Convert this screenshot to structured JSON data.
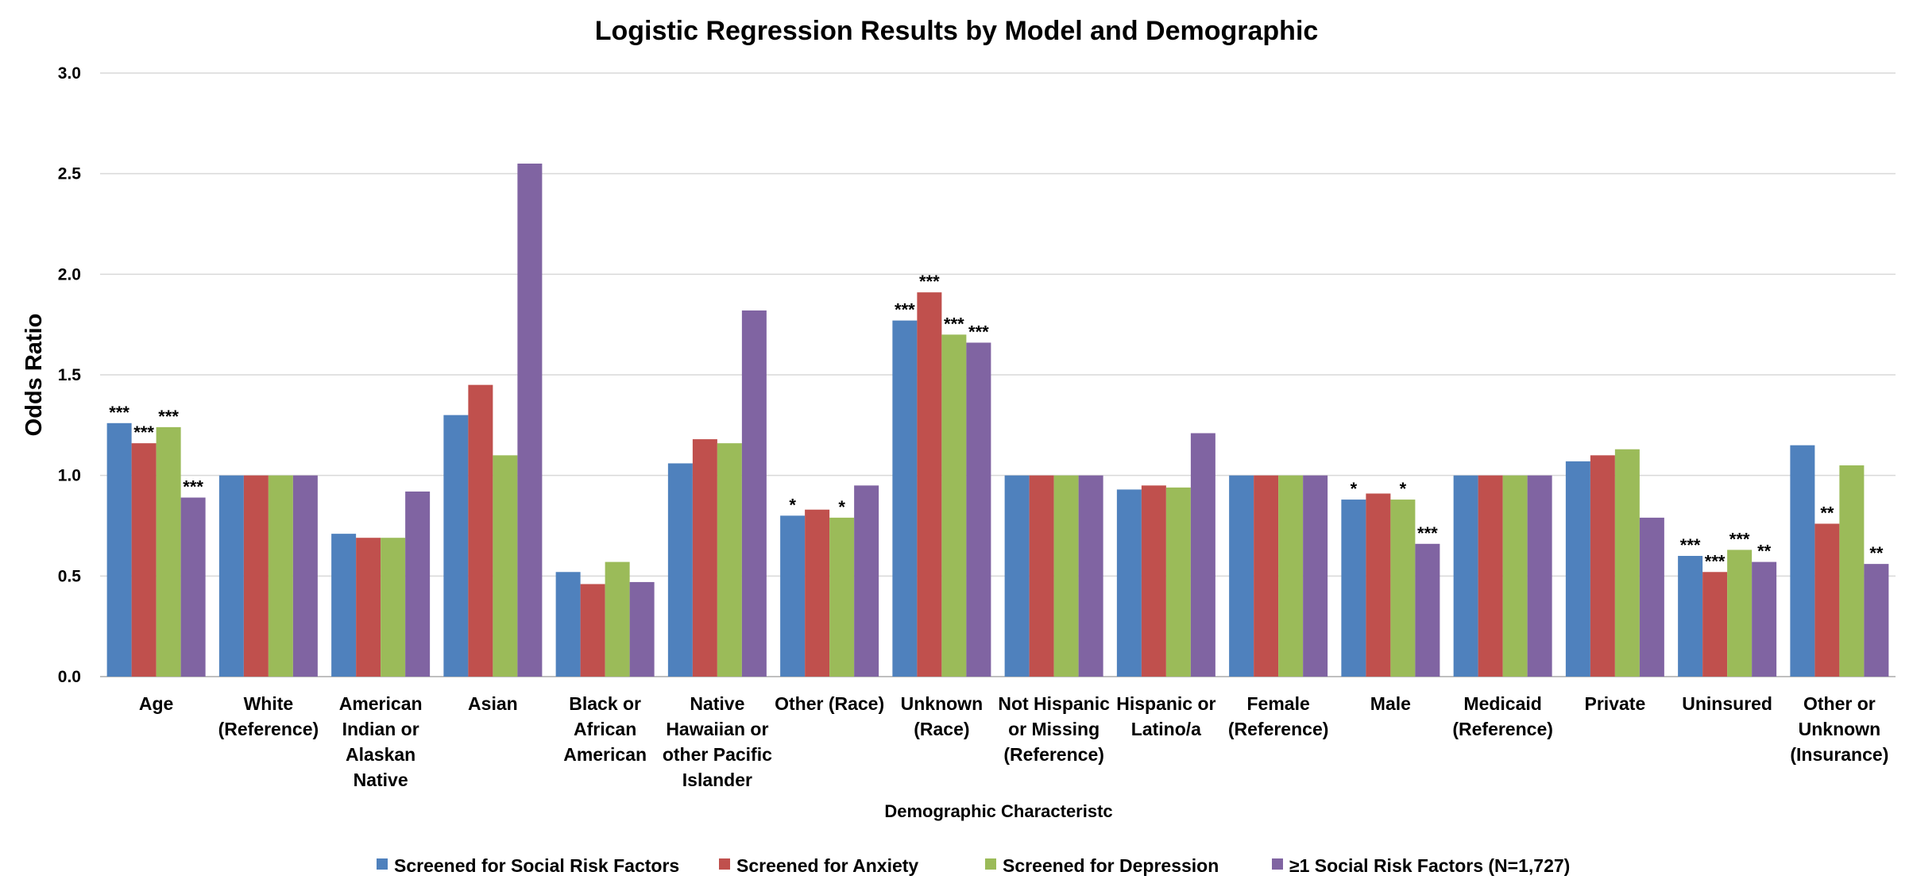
{
  "chart_data": {
    "type": "bar",
    "title": "Logistic Regression Results by Model and Demographic",
    "xlabel": "Demographic Characteristc",
    "ylabel": "Odds Ratio",
    "ylim": [
      0,
      3.0
    ],
    "yticks": [
      "0.0",
      "0.5",
      "1.0",
      "1.5",
      "2.0",
      "2.5",
      "3.0"
    ],
    "grid": true,
    "legend_position": "bottom",
    "categories": [
      [
        "Age"
      ],
      [
        "White",
        "(Reference)"
      ],
      [
        "American",
        "Indian or",
        "Alaskan",
        "Native"
      ],
      [
        "Asian"
      ],
      [
        "Black or",
        "African",
        "American"
      ],
      [
        "Native",
        "Hawaiian or",
        "other Pacific",
        "Islander"
      ],
      [
        "Other (Race)"
      ],
      [
        "Unknown",
        "(Race)"
      ],
      [
        "Not Hispanic",
        "or Missing",
        "(Reference)"
      ],
      [
        "Hispanic or",
        "Latino/a"
      ],
      [
        "Female",
        "(Reference)"
      ],
      [
        "Male"
      ],
      [
        "Medicaid",
        "(Reference)"
      ],
      [
        "Private"
      ],
      [
        "Uninsured"
      ],
      [
        "Other or",
        "Unknown",
        "(Insurance)"
      ]
    ],
    "series": [
      {
        "name": "Screened for Social Risk Factors",
        "color": "#4F81BD",
        "values": [
          1.26,
          1.0,
          0.71,
          1.3,
          0.52,
          1.06,
          0.8,
          1.77,
          1.0,
          0.93,
          1.0,
          0.88,
          1.0,
          1.07,
          0.6,
          1.15
        ],
        "significance": [
          "***",
          "",
          "",
          "",
          "",
          "",
          "*",
          "***",
          "",
          "",
          "",
          "*",
          "",
          "",
          "***",
          ""
        ]
      },
      {
        "name": "Screened for Anxiety",
        "color": "#C0504D",
        "values": [
          1.16,
          1.0,
          0.69,
          1.45,
          0.46,
          1.18,
          0.83,
          1.91,
          1.0,
          0.95,
          1.0,
          0.91,
          1.0,
          1.1,
          0.52,
          0.76
        ],
        "significance": [
          "***",
          "",
          "",
          "",
          "",
          "",
          "",
          "***",
          "",
          "",
          "",
          "",
          "",
          "",
          "***",
          "**"
        ]
      },
      {
        "name": "Screened for Depression",
        "color": "#9BBB59",
        "values": [
          1.24,
          1.0,
          0.69,
          1.1,
          0.57,
          1.16,
          0.79,
          1.7,
          1.0,
          0.94,
          1.0,
          0.88,
          1.0,
          1.13,
          0.63,
          1.05
        ],
        "significance": [
          "***",
          "",
          "",
          "",
          "",
          "",
          "*",
          "***",
          "",
          "",
          "",
          "*",
          "",
          "",
          "***",
          ""
        ]
      },
      {
        "name": "≥1 Social Risk Factors (N=1,727)",
        "color": "#8064A2",
        "values": [
          0.89,
          1.0,
          0.92,
          2.55,
          0.47,
          1.82,
          0.95,
          1.66,
          1.0,
          1.21,
          1.0,
          0.66,
          1.0,
          0.79,
          0.57,
          0.56
        ],
        "significance": [
          "***",
          "",
          "",
          "",
          "",
          "",
          "",
          "***",
          "",
          "",
          "",
          "***",
          "",
          "",
          "**",
          "**"
        ]
      }
    ]
  }
}
